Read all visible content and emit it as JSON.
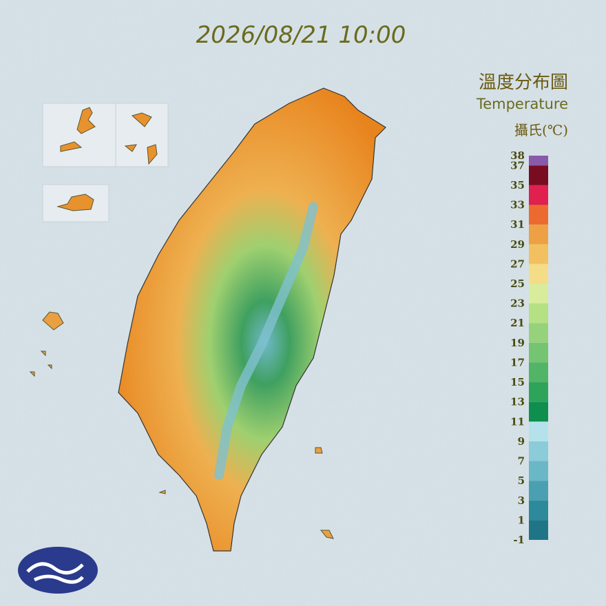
{
  "header": {
    "title": "2026/08/21 10:00"
  },
  "legend": {
    "title": "溫度分布圖",
    "subtitle": "Temperature",
    "unit": "攝氏(℃)",
    "labels": [
      38,
      37,
      35,
      33,
      31,
      29,
      27,
      25,
      23,
      21,
      19,
      17,
      15,
      13,
      11,
      9,
      7,
      5,
      3,
      1,
      -1
    ],
    "colors": [
      "#8a5aaa",
      "#7a0c22",
      "#e0204e",
      "#ec6a30",
      "#eda044",
      "#f2c060",
      "#f5dc86",
      "#d8ec9c",
      "#b6e084",
      "#96d27c",
      "#74c472",
      "#52b466",
      "#2ea35a",
      "#0e8f4e",
      "#b4e2ea",
      "#8ccbd8",
      "#6ab8c6",
      "#4aa0b0",
      "#2d8a9a",
      "#1f7585"
    ]
  }
}
